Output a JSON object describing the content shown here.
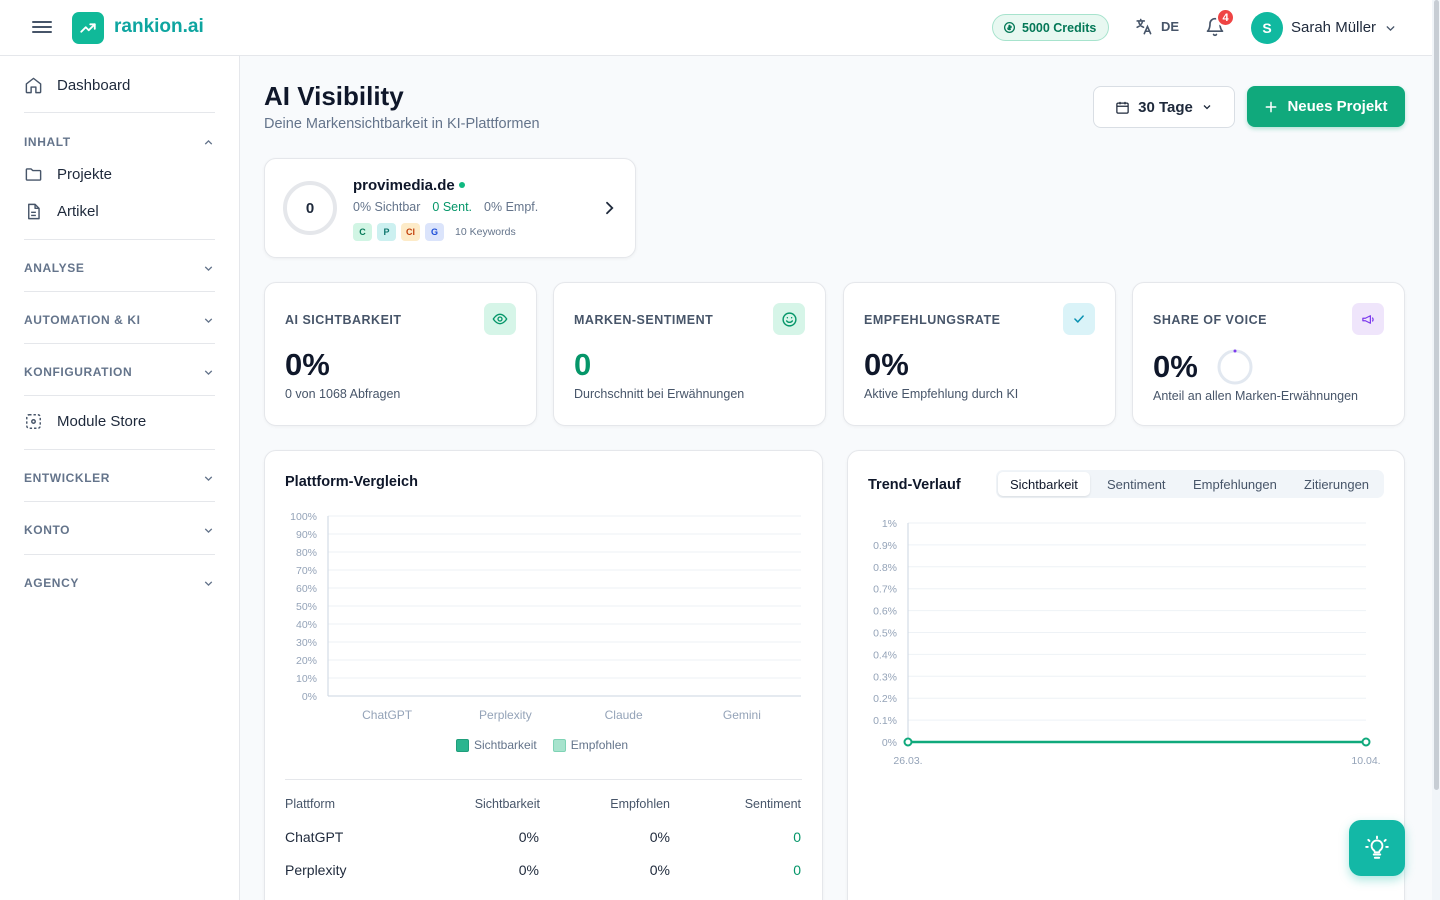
{
  "app": {
    "name": "rankion.ai"
  },
  "topbar": {
    "credits": "5000 Credits",
    "language": "DE",
    "notifications_count": "4",
    "user_initial": "S",
    "user_name": "Sarah Müller"
  },
  "sidebar": {
    "dashboard": "Dashboard",
    "sections": {
      "inhalt": "INHALT",
      "analyse": "ANALYSE",
      "automation": "AUTOMATION & KI",
      "konfiguration": "KONFIGURATION",
      "entwickler": "ENTWICKLER",
      "konto": "KONTO",
      "agency": "AGENCY"
    },
    "projekte": "Projekte",
    "artikel": "Artikel",
    "module_store": "Module Store"
  },
  "header": {
    "title": "AI Visibility",
    "subtitle": "Deine Markensichtbarkeit in KI-Plattformen",
    "range": "30 Tage",
    "new_project": "Neues Projekt"
  },
  "project": {
    "score": "0",
    "name": "provimedia.de",
    "visible": "0% Sichtbar",
    "sentiment": "0 Sent.",
    "recommended": "0% Empf.",
    "chips": [
      "C",
      "P",
      "Cl",
      "G"
    ],
    "keywords": "10 Keywords"
  },
  "kpis": [
    {
      "label": "AI SICHTBARKEIT",
      "value": "0%",
      "sub": "0 von 1068 Abfragen",
      "icon": "eye-icon"
    },
    {
      "label": "MARKEN-SENTIMENT",
      "value": "0",
      "sub": "Durchschnitt bei Erwähnungen",
      "icon": "smile-icon"
    },
    {
      "label": "EMPFEHLUNGSRATE",
      "value": "0%",
      "sub": "Aktive Empfehlung durch KI",
      "icon": "check-icon"
    },
    {
      "label": "SHARE OF VOICE",
      "value": "0%",
      "sub": "Anteil an allen Marken-Erwähnungen",
      "icon": "megaphone-icon"
    }
  ],
  "colors": {
    "accent": "#10a97c",
    "brand": "#0ea5a0",
    "sichtbarkeit": "#2bb58f",
    "empfohlen": "#a7e3cd"
  },
  "platform_panel": {
    "title": "Plattform-Vergleich",
    "table": {
      "headers": [
        "Plattform",
        "Sichtbarkeit",
        "Empfohlen",
        "Sentiment"
      ],
      "rows": [
        [
          "ChatGPT",
          "0%",
          "0%",
          "0"
        ],
        [
          "Perplexity",
          "0%",
          "0%",
          "0"
        ]
      ]
    }
  },
  "trend_panel": {
    "title": "Trend-Verlauf",
    "tabs": [
      "Sichtbarkeit",
      "Sentiment",
      "Empfehlungen",
      "Zitierungen"
    ],
    "active_tab": "Sichtbarkeit"
  },
  "chart_data": [
    {
      "type": "bar",
      "categories": [
        "ChatGPT",
        "Perplexity",
        "Claude",
        "Gemini"
      ],
      "series": [
        {
          "name": "Sichtbarkeit",
          "values": [
            0,
            0,
            0,
            0
          ]
        },
        {
          "name": "Empfohlen",
          "values": [
            0,
            0,
            0,
            0
          ]
        }
      ],
      "ylim": [
        0,
        100
      ],
      "yticks": [
        "0%",
        "10%",
        "20%",
        "30%",
        "40%",
        "50%",
        "60%",
        "70%",
        "80%",
        "90%",
        "100%"
      ],
      "grid": true,
      "legend": "bottom"
    },
    {
      "type": "line",
      "x": [
        "26.03.",
        "10.04."
      ],
      "series": [
        {
          "values": [
            0,
            0
          ]
        }
      ],
      "ylim": [
        0,
        1
      ],
      "yticks": [
        "0%",
        "0.1%",
        "0.2%",
        "0.3%",
        "0.4%",
        "0.5%",
        "0.6%",
        "0.7%",
        "0.8%",
        "0.9%",
        "1%"
      ],
      "grid": true
    }
  ]
}
